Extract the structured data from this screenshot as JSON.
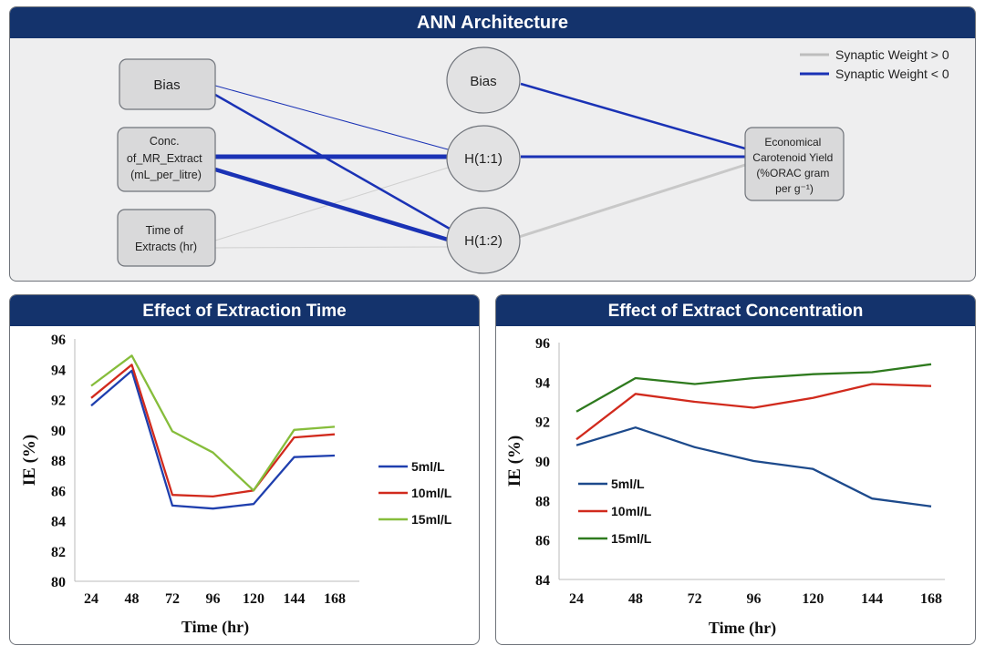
{
  "ann": {
    "title": "ANN Architecture",
    "legend": [
      {
        "label": "Synaptic Weight > 0",
        "color": "#bdbdbd"
      },
      {
        "label": "Synaptic Weight < 0",
        "color": "#1a32b5"
      }
    ],
    "nodes": {
      "bias_input": [
        "Bias"
      ],
      "conc": [
        "Conc.",
        "of_MR_Extract",
        "(mL_per_litre)"
      ],
      "time": [
        "Time of",
        "Extracts (hr)"
      ],
      "bias_hidden": [
        "Bias"
      ],
      "h11": [
        "H(1:1)"
      ],
      "h12": [
        "H(1:2)"
      ],
      "output": [
        "Economical",
        "Carotenoid Yield",
        "(%ORAC gram",
        "per g⁻¹)"
      ]
    }
  },
  "chart_data": [
    {
      "type": "line",
      "title": "Effect of Extraction Time",
      "xlabel": "Time (hr)",
      "ylabel": "IE (%)",
      "x": [
        24,
        48,
        72,
        96,
        120,
        144,
        168
      ],
      "ylim": [
        80,
        96
      ],
      "yticks": [
        80,
        82,
        84,
        86,
        88,
        90,
        92,
        94,
        96
      ],
      "grid": false,
      "legend_position": "right",
      "series": [
        {
          "name": "5ml/L",
          "color": "#1f3fae",
          "values": [
            91.6,
            93.9,
            85.0,
            84.8,
            85.1,
            88.2,
            88.3
          ]
        },
        {
          "name": "10ml/L",
          "color": "#d12a1d",
          "values": [
            92.1,
            94.3,
            85.7,
            85.6,
            86.0,
            89.5,
            89.7
          ]
        },
        {
          "name": "15ml/L",
          "color": "#86bd3b",
          "values": [
            92.9,
            94.9,
            89.9,
            88.5,
            86.0,
            90.0,
            90.2
          ]
        }
      ]
    },
    {
      "type": "line",
      "title": "Effect of Extract Concentration",
      "xlabel": "Time (hr)",
      "ylabel": "IE (%)",
      "x": [
        24,
        48,
        72,
        96,
        120,
        144,
        168
      ],
      "ylim": [
        84,
        96
      ],
      "yticks": [
        84,
        86,
        88,
        90,
        92,
        94,
        96
      ],
      "grid": false,
      "legend_position": "left",
      "series": [
        {
          "name": "5ml/L",
          "color": "#1d4a8c",
          "values": [
            90.8,
            91.7,
            90.7,
            90.0,
            89.6,
            88.1,
            87.7
          ]
        },
        {
          "name": "10ml/L",
          "color": "#d12a1d",
          "values": [
            91.1,
            93.4,
            93.0,
            92.7,
            93.2,
            93.9,
            93.8
          ]
        },
        {
          "name": "15ml/L",
          "color": "#2e7a1e",
          "values": [
            92.5,
            94.2,
            93.9,
            94.2,
            94.4,
            94.5,
            94.9
          ]
        }
      ]
    }
  ]
}
